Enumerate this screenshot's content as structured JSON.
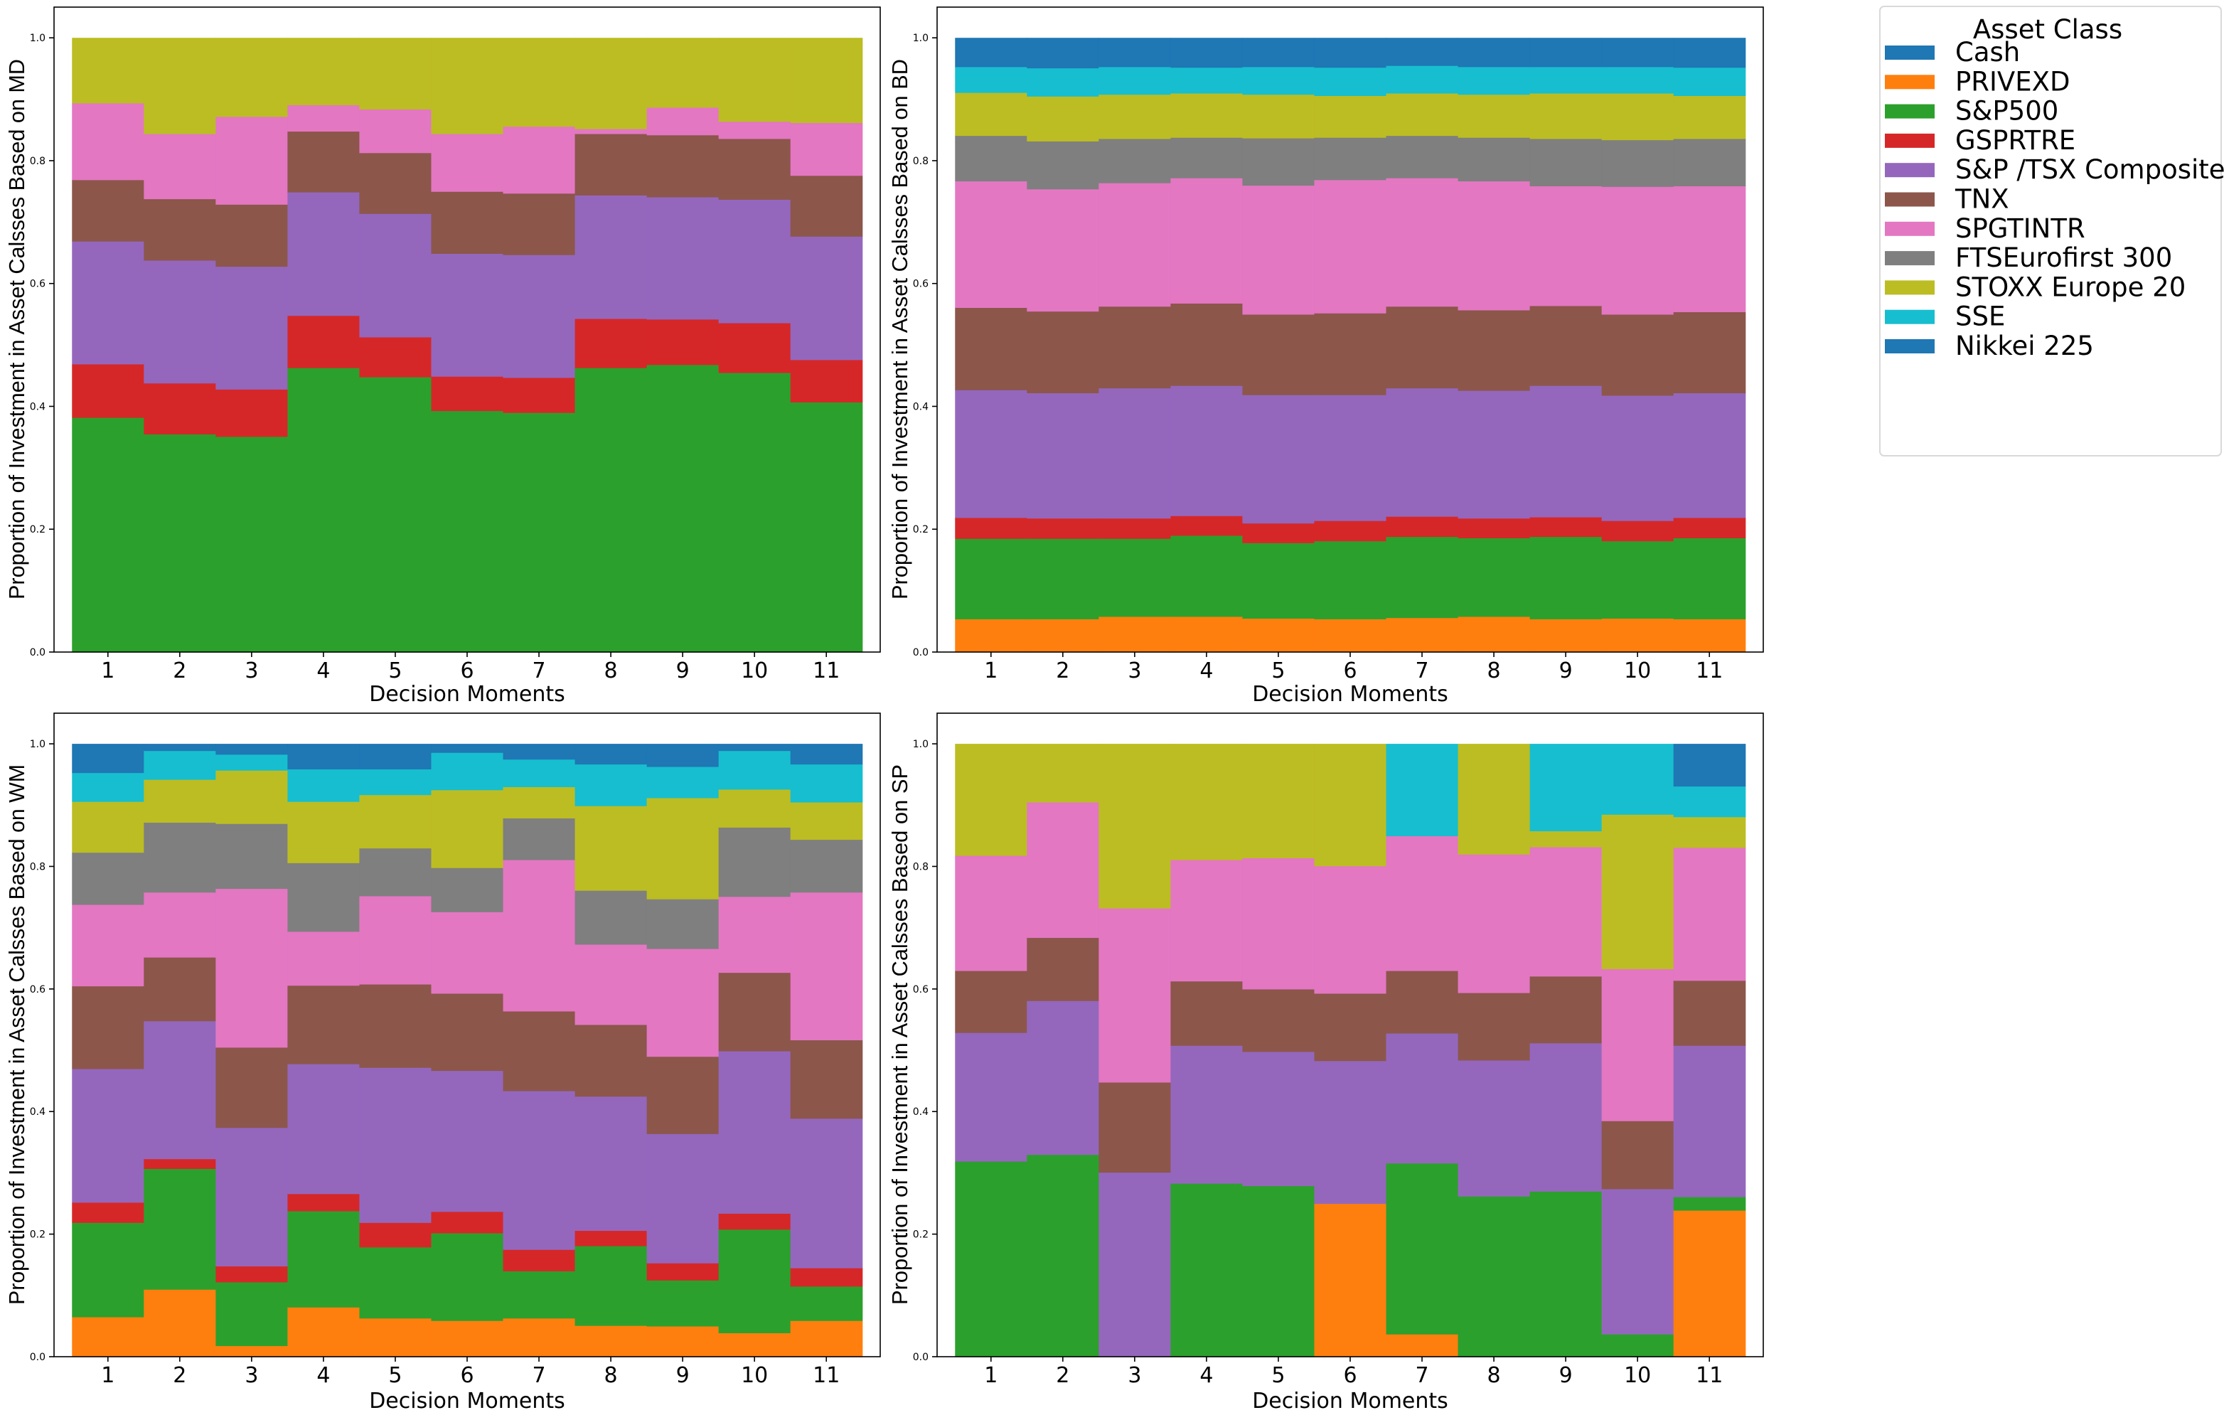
{
  "legend": {
    "title": "Asset Class",
    "placement": "outside-top-right",
    "items": [
      {
        "label": "Cash",
        "color": "#1f77b4"
      },
      {
        "label": "PRIVEXD",
        "color": "#ff7f0e"
      },
      {
        "label": "S&P500",
        "color": "#2ca02c"
      },
      {
        "label": "GSPRTRE",
        "color": "#d62728"
      },
      {
        "label": "S&P /TSX Composite",
        "color": "#9467bd"
      },
      {
        "label": "TNX",
        "color": "#8c564b"
      },
      {
        "label": "SPGTINTR",
        "color": "#e377c2"
      },
      {
        "label": "FTSEurofirst 300",
        "color": "#7f7f7f"
      },
      {
        "label": "STOXX Europe 20",
        "color": "#bcbd22"
      },
      {
        "label": "SSE",
        "color": "#17becf"
      },
      {
        "label": "Nikkei 225",
        "color": "#1f77b4"
      }
    ]
  },
  "chart_data": [
    {
      "type": "bar",
      "stacked": true,
      "title": "",
      "xlabel": "Decision Moments",
      "ylabel": "Proportion of Investment in Asset Calsses Based on MD",
      "categories": [
        "1",
        "2",
        "3",
        "4",
        "5",
        "6",
        "7",
        "8",
        "9",
        "10",
        "11"
      ],
      "ylim": [
        0,
        1.05
      ],
      "yticks": [
        "0.0",
        "0.2",
        "0.4",
        "0.6",
        "0.8",
        "1.0"
      ],
      "grid": false,
      "series": [
        {
          "name": "S&P500",
          "values": [
            0.382,
            0.355,
            0.351,
            0.463,
            0.448,
            0.393,
            0.39,
            0.463,
            0.468,
            0.455,
            0.407
          ]
        },
        {
          "name": "GSPRTRE",
          "values": [
            0.087,
            0.083,
            0.077,
            0.085,
            0.065,
            0.056,
            0.057,
            0.08,
            0.074,
            0.081,
            0.069
          ]
        },
        {
          "name": "S&P /TSX Composite",
          "values": [
            0.2,
            0.2,
            0.2,
            0.201,
            0.201,
            0.2,
            0.2,
            0.201,
            0.199,
            0.201,
            0.201
          ]
        },
        {
          "name": "TNX",
          "values": [
            0.1,
            0.1,
            0.101,
            0.099,
            0.099,
            0.101,
            0.1,
            0.1,
            0.101,
            0.099,
            0.099
          ]
        },
        {
          "name": "SPGTINTR",
          "values": [
            0.125,
            0.106,
            0.143,
            0.043,
            0.071,
            0.094,
            0.109,
            0.008,
            0.045,
            0.028,
            0.086
          ]
        },
        {
          "name": "STOXX Europe 20",
          "values": [
            0.106,
            0.156,
            0.128,
            0.109,
            0.116,
            0.156,
            0.144,
            0.148,
            0.113,
            0.136,
            0.138
          ]
        }
      ]
    },
    {
      "type": "bar",
      "stacked": true,
      "title": "",
      "xlabel": "Decision Moments",
      "ylabel": "Proportion of Investment in Asset Calsses Based on BD",
      "categories": [
        "1",
        "2",
        "3",
        "4",
        "5",
        "6",
        "7",
        "8",
        "9",
        "10",
        "11"
      ],
      "ylim": [
        0,
        1.05
      ],
      "yticks": [
        "0.0",
        "0.2",
        "0.4",
        "0.6",
        "0.8",
        "1.0"
      ],
      "grid": false,
      "series": [
        {
          "name": "PRIVEXD",
          "values": [
            0.054,
            0.054,
            0.058,
            0.058,
            0.055,
            0.054,
            0.056,
            0.058,
            0.054,
            0.055,
            0.054
          ]
        },
        {
          "name": "S&P500",
          "values": [
            0.131,
            0.131,
            0.127,
            0.132,
            0.123,
            0.127,
            0.132,
            0.128,
            0.134,
            0.126,
            0.132
          ]
        },
        {
          "name": "GSPRTRE",
          "values": [
            0.034,
            0.033,
            0.033,
            0.032,
            0.032,
            0.033,
            0.033,
            0.032,
            0.032,
            0.033,
            0.033
          ]
        },
        {
          "name": "S&P /TSX Composite",
          "values": [
            0.208,
            0.204,
            0.212,
            0.212,
            0.209,
            0.205,
            0.209,
            0.208,
            0.214,
            0.204,
            0.203
          ]
        },
        {
          "name": "TNX",
          "values": [
            0.134,
            0.133,
            0.133,
            0.134,
            0.131,
            0.133,
            0.133,
            0.131,
            0.13,
            0.132,
            0.132
          ]
        },
        {
          "name": "SPGTINTR",
          "values": [
            0.206,
            0.199,
            0.201,
            0.204,
            0.21,
            0.217,
            0.209,
            0.21,
            0.195,
            0.208,
            0.205
          ]
        },
        {
          "name": "FTSEurofirst 300",
          "values": [
            0.074,
            0.078,
            0.072,
            0.066,
            0.077,
            0.069,
            0.069,
            0.071,
            0.077,
            0.076,
            0.077
          ]
        },
        {
          "name": "STOXX Europe 20",
          "values": [
            0.07,
            0.073,
            0.072,
            0.072,
            0.071,
            0.068,
            0.069,
            0.07,
            0.074,
            0.076,
            0.07
          ]
        },
        {
          "name": "SSE",
          "values": [
            0.042,
            0.046,
            0.045,
            0.042,
            0.045,
            0.046,
            0.045,
            0.045,
            0.043,
            0.043,
            0.046
          ]
        },
        {
          "name": "Nikkei 225",
          "values": [
            0.047,
            0.049,
            0.047,
            0.048,
            0.047,
            0.048,
            0.045,
            0.047,
            0.047,
            0.047,
            0.048
          ]
        }
      ]
    },
    {
      "type": "bar",
      "stacked": true,
      "title": "",
      "xlabel": "Decision Moments",
      "ylabel": "Proportion of Investment in Asset Calsses Based on WM",
      "categories": [
        "1",
        "2",
        "3",
        "4",
        "5",
        "6",
        "7",
        "8",
        "9",
        "10",
        "11"
      ],
      "ylim": [
        0,
        1.05
      ],
      "yticks": [
        "0.0",
        "0.2",
        "0.4",
        "0.6",
        "0.8",
        "1.0"
      ],
      "grid": false,
      "series": [
        {
          "name": "PRIVEXD",
          "values": [
            0.065,
            0.11,
            0.018,
            0.081,
            0.063,
            0.059,
            0.063,
            0.051,
            0.05,
            0.039,
            0.059
          ]
        },
        {
          "name": "S&P500",
          "values": [
            0.154,
            0.197,
            0.104,
            0.157,
            0.116,
            0.143,
            0.077,
            0.13,
            0.075,
            0.169,
            0.056
          ]
        },
        {
          "name": "GSPRTRE",
          "values": [
            0.033,
            0.016,
            0.026,
            0.028,
            0.04,
            0.035,
            0.035,
            0.025,
            0.028,
            0.026,
            0.03
          ]
        },
        {
          "name": "S&P /TSX Composite",
          "values": [
            0.218,
            0.225,
            0.226,
            0.212,
            0.253,
            0.23,
            0.259,
            0.219,
            0.211,
            0.265,
            0.244
          ]
        },
        {
          "name": "TNX",
          "values": [
            0.135,
            0.104,
            0.131,
            0.128,
            0.136,
            0.126,
            0.13,
            0.117,
            0.126,
            0.128,
            0.128
          ]
        },
        {
          "name": "SPGTINTR",
          "values": [
            0.133,
            0.106,
            0.259,
            0.088,
            0.144,
            0.133,
            0.247,
            0.131,
            0.176,
            0.124,
            0.241
          ]
        },
        {
          "name": "FTSEurofirst 300",
          "values": [
            0.085,
            0.114,
            0.106,
            0.112,
            0.078,
            0.072,
            0.068,
            0.088,
            0.081,
            0.113,
            0.086
          ]
        },
        {
          "name": "STOXX Europe 20",
          "values": [
            0.083,
            0.07,
            0.087,
            0.1,
            0.087,
            0.127,
            0.051,
            0.138,
            0.165,
            0.062,
            0.061
          ]
        },
        {
          "name": "SSE",
          "values": [
            0.047,
            0.047,
            0.026,
            0.053,
            0.042,
            0.061,
            0.045,
            0.068,
            0.051,
            0.063,
            0.062
          ]
        },
        {
          "name": "Nikkei 225",
          "values": [
            0.047,
            0.011,
            0.017,
            0.041,
            0.041,
            0.014,
            0.025,
            0.033,
            0.037,
            0.011,
            0.033
          ]
        }
      ]
    },
    {
      "type": "bar",
      "stacked": true,
      "title": "",
      "xlabel": "Decision Moments",
      "ylabel": "Proportion of Investment in Asset Calsses Based on SP",
      "categories": [
        "1",
        "2",
        "3",
        "4",
        "5",
        "6",
        "7",
        "8",
        "9",
        "10",
        "11"
      ],
      "ylim": [
        0,
        1.05
      ],
      "yticks": [
        "0.0",
        "0.2",
        "0.4",
        "0.6",
        "0.8",
        "1.0"
      ],
      "grid": false,
      "series": [
        {
          "name": "PRIVEXD",
          "values": [
            0,
            0,
            0,
            0,
            0,
            0.25,
            0.037,
            0,
            0,
            0,
            0.239
          ]
        },
        {
          "name": "S&P500",
          "values": [
            0.319,
            0.33,
            0,
            0.283,
            0.279,
            0,
            0.279,
            0.262,
            0.27,
            0.037,
            0.022
          ]
        },
        {
          "name": "S&P /TSX Composite",
          "values": [
            0.21,
            0.251,
            0.301,
            0.225,
            0.219,
            0.233,
            0.212,
            0.222,
            0.242,
            0.237,
            0.247
          ]
        },
        {
          "name": "TNX",
          "values": [
            0.101,
            0.103,
            0.147,
            0.105,
            0.102,
            0.11,
            0.102,
            0.11,
            0.109,
            0.111,
            0.106
          ]
        },
        {
          "name": "SPGTINTR",
          "values": [
            0.188,
            0.221,
            0.284,
            0.198,
            0.214,
            0.208,
            0.22,
            0.226,
            0.211,
            0.248,
            0.217
          ]
        },
        {
          "name": "STOXX Europe 20",
          "values": [
            0.182,
            0.095,
            0.268,
            0.189,
            0.186,
            0.199,
            0,
            0.18,
            0.026,
            0.252,
            0.05
          ]
        },
        {
          "name": "SSE",
          "values": [
            0,
            0,
            0,
            0,
            0,
            0,
            0.15,
            0,
            0.142,
            0.115,
            0.05
          ]
        },
        {
          "name": "Nikkei 225",
          "values": [
            0,
            0,
            0,
            0,
            0,
            0,
            0,
            0,
            0,
            0,
            0.069
          ]
        }
      ]
    }
  ]
}
